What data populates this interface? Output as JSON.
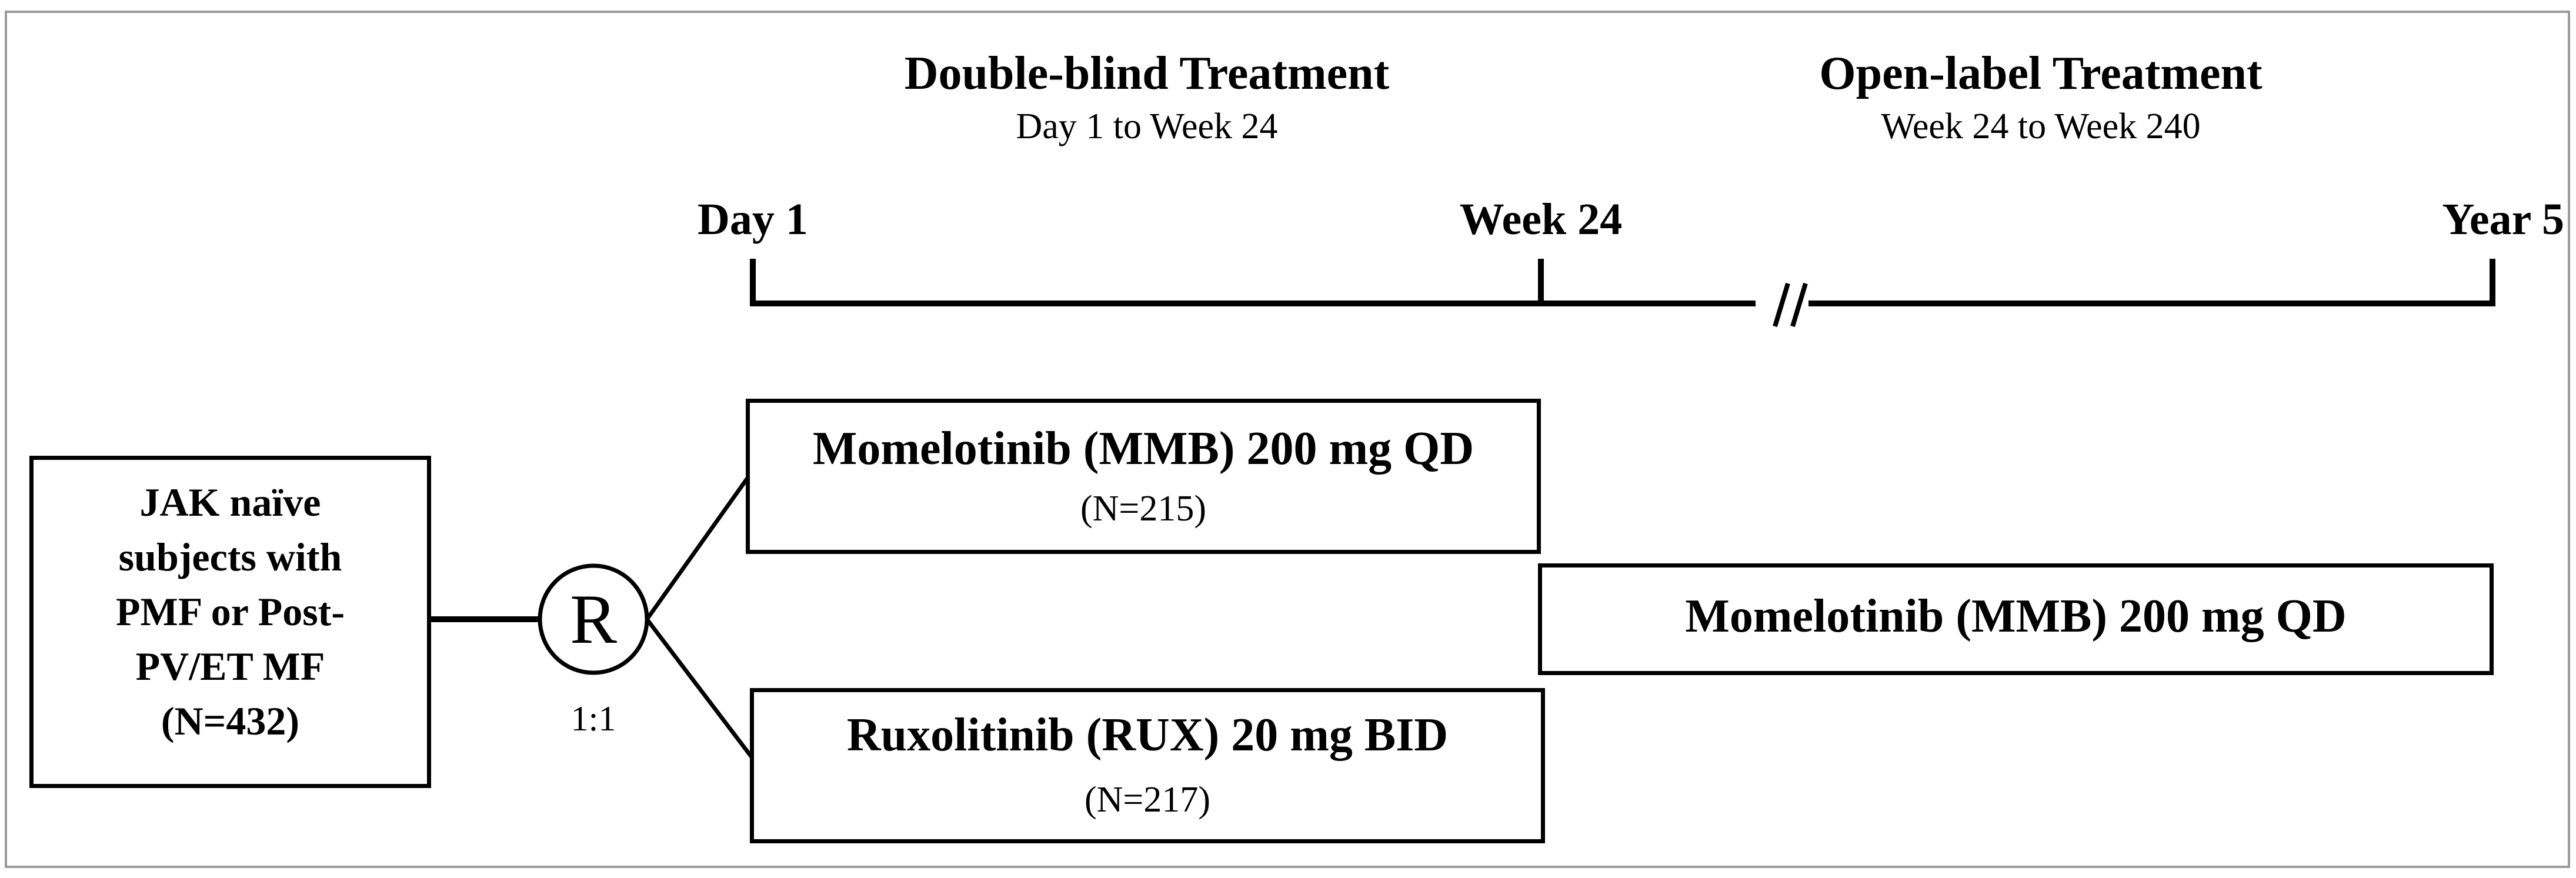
{
  "phases": {
    "double_blind": {
      "title": "Double-blind Treatment",
      "subtitle": "Day 1 to Week 24"
    },
    "open_label": {
      "title": "Open-label Treatment",
      "subtitle": "Week 24 to Week 240"
    }
  },
  "timeline": {
    "day1": "Day 1",
    "week24": "Week 24",
    "year5": "Year 5",
    "break_mark": "//"
  },
  "population": {
    "lines": [
      "JAK naïve",
      "subjects with",
      "PMF or Post-",
      "PV/ET MF",
      "(N=432)"
    ]
  },
  "randomization": {
    "symbol": "R",
    "ratio": "1:1"
  },
  "arms": {
    "mmb": {
      "name": "Momelotinib (MMB) 200 mg QD",
      "n": "(N=215)"
    },
    "rux": {
      "name": "Ruxolitinib (RUX) 20 mg BID",
      "n": "(N=217)"
    }
  },
  "open_label_arm": {
    "name": "Momelotinib (MMB) 200 mg QD"
  }
}
